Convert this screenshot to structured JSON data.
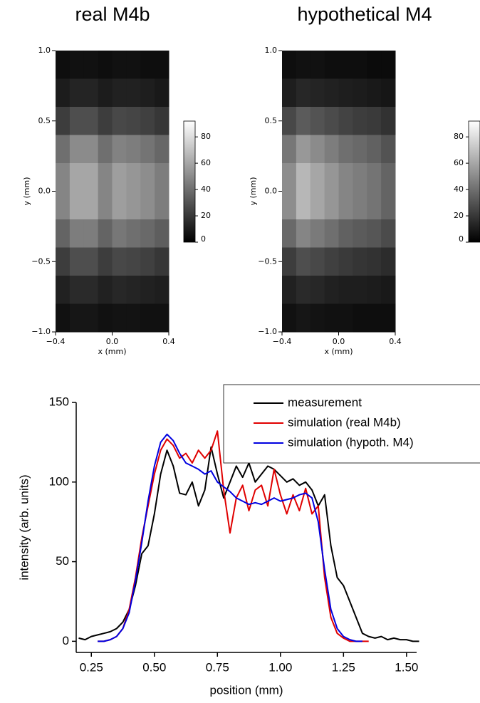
{
  "chart_data": [
    {
      "type": "heatmap",
      "title": "real M4b",
      "xlabel": "x (mm)",
      "ylabel": "y (mm)",
      "xlim": [
        -0.4,
        0.4
      ],
      "ylim": [
        -1.0,
        1.0
      ],
      "xticks": [
        {
          "value": -0.4,
          "label": "−0.4"
        },
        {
          "value": 0,
          "label": "0.0"
        },
        {
          "value": 0.4,
          "label": "0.4"
        }
      ],
      "yticks": [
        {
          "value": 1.0,
          "label": "1.0"
        },
        {
          "value": 0.5,
          "label": "0.5"
        },
        {
          "value": 0,
          "label": "0.0"
        },
        {
          "value": -0.5,
          "label": "−0.5"
        },
        {
          "value": -1.0,
          "label": "−1.0"
        }
      ],
      "zlim": [
        0,
        92
      ],
      "zticks": [
        0,
        20,
        40,
        60,
        80
      ],
      "colormap": [
        "#000000",
        "#ffffff"
      ],
      "z": [
        [
          5,
          6,
          6,
          5,
          6,
          6,
          5,
          5
        ],
        [
          10,
          13,
          13,
          10,
          12,
          12,
          11,
          9
        ],
        [
          22,
          28,
          28,
          22,
          26,
          25,
          23,
          20
        ],
        [
          40,
          50,
          50,
          40,
          47,
          45,
          42,
          37
        ],
        [
          48,
          60,
          60,
          48,
          57,
          54,
          51,
          45
        ],
        [
          48,
          60,
          60,
          48,
          57,
          54,
          51,
          45
        ],
        [
          36,
          45,
          45,
          36,
          43,
          40,
          38,
          34
        ],
        [
          22,
          28,
          28,
          22,
          26,
          25,
          23,
          20
        ],
        [
          12,
          15,
          15,
          12,
          14,
          13,
          12,
          11
        ],
        [
          6,
          8,
          8,
          6,
          7,
          7,
          6,
          6
        ]
      ]
    },
    {
      "type": "heatmap",
      "title": "hypothetical M4",
      "xlabel": "x (mm)",
      "ylabel": "y (mm)",
      "xlim": [
        -0.4,
        0.4
      ],
      "ylim": [
        -1.0,
        1.0
      ],
      "xticks": [
        {
          "value": -0.4,
          "label": "−0.4"
        },
        {
          "value": 0,
          "label": "0.0"
        },
        {
          "value": 0.4,
          "label": "0.4"
        }
      ],
      "yticks": [
        {
          "value": 1.0,
          "label": "1.0"
        },
        {
          "value": 0.5,
          "label": "0.5"
        },
        {
          "value": 0,
          "label": "0.0"
        },
        {
          "value": -0.5,
          "label": "−0.5"
        },
        {
          "value": -1.0,
          "label": "−1.0"
        }
      ],
      "zlim": [
        0,
        92
      ],
      "zticks": [
        0,
        20,
        40,
        60,
        80
      ],
      "colormap": [
        "#000000",
        "#ffffff"
      ],
      "z": [
        [
          5,
          6,
          6,
          5,
          5,
          5,
          4,
          4
        ],
        [
          11,
          14,
          13,
          12,
          11,
          10,
          9,
          8
        ],
        [
          26,
          33,
          30,
          27,
          24,
          22,
          21,
          18
        ],
        [
          43,
          55,
          50,
          45,
          40,
          38,
          35,
          30
        ],
        [
          51,
          66,
          60,
          54,
          48,
          45,
          42,
          36
        ],
        [
          51,
          66,
          60,
          54,
          48,
          45,
          42,
          36
        ],
        [
          38,
          48,
          44,
          40,
          35,
          33,
          31,
          27
        ],
        [
          22,
          28,
          26,
          23,
          21,
          19,
          18,
          16
        ],
        [
          12,
          15,
          14,
          12,
          11,
          11,
          10,
          9
        ],
        [
          6,
          8,
          7,
          6,
          6,
          5,
          5,
          5
        ]
      ]
    },
    {
      "type": "line",
      "xlabel": "position (mm)",
      "ylabel": "intensity (arb. units)",
      "xlim": [
        0.19,
        1.54
      ],
      "ylim": [
        -7,
        150
      ],
      "xticks": [
        {
          "value": 0.25,
          "label": "0.25"
        },
        {
          "value": 0.5,
          "label": "0.50"
        },
        {
          "value": 0.75,
          "label": "0.75"
        },
        {
          "value": 1.0,
          "label": "1.00"
        },
        {
          "value": 1.25,
          "label": "1.25"
        },
        {
          "value": 1.5,
          "label": "1.50"
        }
      ],
      "yticks": [
        0,
        50,
        100,
        150
      ],
      "legend": "upper right",
      "x": [
        0.2,
        0.225,
        0.25,
        0.275,
        0.3,
        0.325,
        0.35,
        0.375,
        0.4,
        0.425,
        0.45,
        0.475,
        0.5,
        0.525,
        0.55,
        0.575,
        0.6,
        0.625,
        0.65,
        0.675,
        0.7,
        0.725,
        0.75,
        0.775,
        0.8,
        0.825,
        0.85,
        0.875,
        0.9,
        0.925,
        0.95,
        0.975,
        1.0,
        1.025,
        1.05,
        1.075,
        1.1,
        1.125,
        1.15,
        1.175,
        1.2,
        1.225,
        1.25,
        1.275,
        1.3,
        1.325,
        1.35,
        1.375,
        1.4,
        1.425,
        1.45,
        1.475,
        1.5,
        1.525,
        1.55
      ],
      "series": [
        {
          "name": "measurement",
          "color": "#000000",
          "values": [
            2,
            1,
            3,
            4,
            5,
            6,
            8,
            12,
            20,
            35,
            55,
            60,
            80,
            105,
            120,
            110,
            93,
            92,
            100,
            85,
            95,
            122,
            105,
            90,
            100,
            110,
            103,
            112,
            100,
            105,
            110,
            108,
            104,
            100,
            102,
            98,
            100,
            95,
            85,
            92,
            60,
            40,
            35,
            25,
            15,
            5,
            3,
            2,
            3,
            1,
            2,
            1,
            1,
            0,
            0
          ]
        },
        {
          "name": "simulation (real M4b)",
          "color": "#e00000",
          "values": [
            null,
            null,
            null,
            0,
            0,
            1,
            3,
            8,
            20,
            40,
            65,
            85,
            105,
            120,
            127,
            123,
            115,
            118,
            112,
            120,
            115,
            120,
            132,
            95,
            68,
            90,
            98,
            82,
            95,
            98,
            85,
            108,
            92,
            80,
            92,
            82,
            96,
            80,
            85,
            40,
            15,
            5,
            2,
            0,
            0,
            0,
            0,
            null,
            null,
            null,
            null,
            null,
            null,
            null,
            null
          ]
        },
        {
          "name": "simulation (hypoth. M4)",
          "color": "#0000e0",
          "values": [
            null,
            null,
            null,
            0,
            0,
            1,
            3,
            8,
            18,
            38,
            62,
            88,
            110,
            125,
            130,
            126,
            118,
            112,
            110,
            108,
            105,
            107,
            100,
            97,
            94,
            90,
            88,
            86,
            87,
            86,
            88,
            90,
            88,
            89,
            90,
            92,
            93,
            90,
            75,
            45,
            20,
            8,
            3,
            1,
            0,
            0,
            null,
            null,
            null,
            null,
            null,
            null,
            null,
            null,
            null
          ]
        }
      ]
    }
  ]
}
